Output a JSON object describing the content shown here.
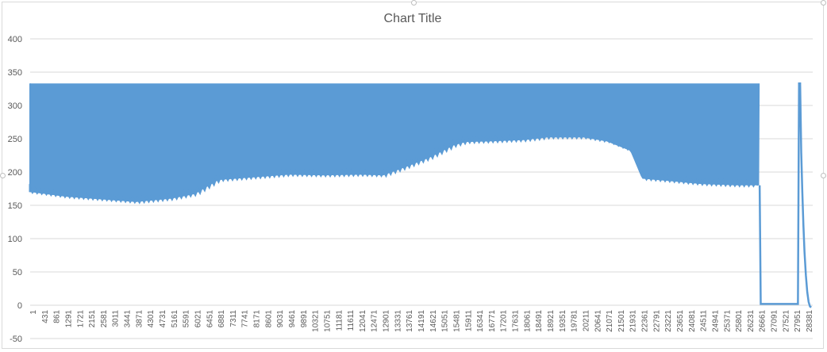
{
  "chart_data": {
    "type": "area",
    "title": "Chart Title",
    "ylim": [
      -50,
      400
    ],
    "y_ticks": [
      -50,
      0,
      50,
      100,
      150,
      200,
      250,
      300,
      350,
      400
    ],
    "grid": true,
    "legend": "none",
    "color": "#5b9bd5",
    "x_tick_labels": [
      "1",
      "431",
      "861",
      "1291",
      "1721",
      "2151",
      "2581",
      "3011",
      "3441",
      "3871",
      "4301",
      "4731",
      "5161",
      "5591",
      "6021",
      "6451",
      "6881",
      "7311",
      "7741",
      "8171",
      "8601",
      "9031",
      "9461",
      "9891",
      "10321",
      "10751",
      "11181",
      "11611",
      "12041",
      "12471",
      "12901",
      "13331",
      "13761",
      "14191",
      "14621",
      "15051",
      "15481",
      "15911",
      "16341",
      "16771",
      "17201",
      "17631",
      "18061",
      "18491",
      "18921",
      "19351",
      "19781",
      "20211",
      "20641",
      "21071",
      "21501",
      "21931",
      "22361",
      "22791",
      "23221",
      "23651",
      "24081",
      "24511",
      "24941",
      "25371",
      "25801",
      "26231",
      "26661",
      "27091",
      "27521",
      "27951",
      "28381"
    ],
    "series": [
      {
        "upper_envelope": {
          "x": [
            1,
            26661
          ],
          "y": [
            333,
            333
          ]
        },
        "lower_envelope": {
          "x": [
            1,
            1291,
            2581,
            3871,
            5161,
            6021,
            6881,
            8171,
            9461,
            10751,
            12041,
            12901,
            13761,
            14621,
            15481,
            15911,
            16771,
            18061,
            18921,
            20211,
            21071,
            21931,
            22361,
            23221,
            24511,
            25801,
            26661
          ],
          "y": [
            170,
            163,
            159,
            155,
            160,
            167,
            188,
            192,
            196,
            195,
            196,
            195,
            208,
            222,
            240,
            245,
            246,
            248,
            252,
            252,
            246,
            232,
            190,
            187,
            182,
            180,
            180
          ]
        },
        "tail": {
          "x": [
            26661,
            26700,
            28060,
            28100,
            28140,
            28180,
            28220,
            28260,
            28300,
            28350,
            28400,
            28450,
            28500,
            28550
          ],
          "y": [
            180,
            2,
            2,
            333,
            333,
            230,
            170,
            120,
            80,
            45,
            20,
            5,
            -2,
            -3
          ]
        }
      }
    ]
  }
}
